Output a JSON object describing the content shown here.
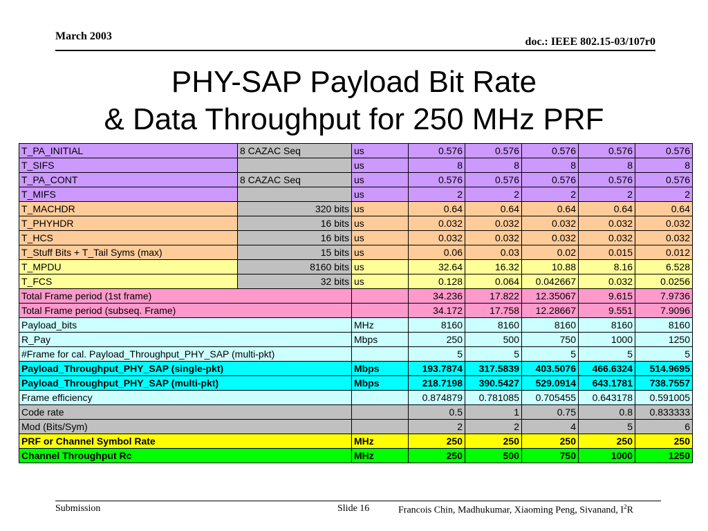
{
  "header": {
    "date": "March 2003",
    "doc": "doc.: IEEE 802.15-03/107r0"
  },
  "title": {
    "line1": "PHY-SAP Payload Bit Rate",
    "line2": "& Data Throughput for 250 MHz PRF"
  },
  "table": {
    "rows": [
      {
        "label": "T_PA_INITIAL",
        "spec": "8 CAZAC Seq",
        "unit": "us",
        "v": [
          "0.576",
          "0.576",
          "0.576",
          "0.576",
          "0.576"
        ]
      },
      {
        "label": "T_SIFS",
        "spec": "",
        "unit": "us",
        "v": [
          "8",
          "8",
          "8",
          "8",
          "8"
        ]
      },
      {
        "label": "T_PA_CONT",
        "spec": "8 CAZAC Seq",
        "unit": "us",
        "v": [
          "0.576",
          "0.576",
          "0.576",
          "0.576",
          "0.576"
        ]
      },
      {
        "label": "T_MIFS",
        "spec": "",
        "unit": "us",
        "v": [
          "2",
          "2",
          "2",
          "2",
          "2"
        ]
      },
      {
        "label": "T_MACHDR",
        "spec": "320 bits",
        "unit": "us",
        "v": [
          "0.64",
          "0.64",
          "0.64",
          "0.64",
          "0.64"
        ]
      },
      {
        "label": "T_PHYHDR",
        "spec": "16 bits",
        "unit": "us",
        "v": [
          "0.032",
          "0.032",
          "0.032",
          "0.032",
          "0.032"
        ]
      },
      {
        "label": "T_HCS",
        "spec": "16 bits",
        "unit": "us",
        "v": [
          "0.032",
          "0.032",
          "0.032",
          "0.032",
          "0.032"
        ]
      },
      {
        "label": "T_Stuff Bits + T_Tail Syms (max)",
        "spec": "15 bits",
        "unit": "us",
        "v": [
          "0.06",
          "0.03",
          "0.02",
          "0.015",
          "0.012"
        ]
      },
      {
        "label": "T_MPDU",
        "spec": "8160 bits",
        "unit": "us",
        "v": [
          "32.64",
          "16.32",
          "10.88",
          "8.16",
          "6.528"
        ]
      },
      {
        "label": "T_FCS",
        "spec": "32 bits",
        "unit": "us",
        "v": [
          "0.128",
          "0.064",
          "0.042667",
          "0.032",
          "0.0256"
        ]
      },
      {
        "label": "Total Frame period (1st frame)",
        "unit": "",
        "v": [
          "34.236",
          "17.822",
          "12.35067",
          "9.615",
          "7.9736"
        ]
      },
      {
        "label": "Total Frame period (subseq. Frame)",
        "unit": "",
        "v": [
          "34.172",
          "17.758",
          "12.28667",
          "9.551",
          "7.9096"
        ]
      },
      {
        "label": "Payload_bits",
        "unit": "MHz",
        "v": [
          "8160",
          "8160",
          "8160",
          "8160",
          "8160"
        ]
      },
      {
        "label": "R_Pay",
        "unit": "Mbps",
        "v": [
          "250",
          "500",
          "750",
          "1000",
          "1250"
        ]
      },
      {
        "label": "#Frame for cal. Payload_Throughput_PHY_SAP (multi-pkt)",
        "unit": "",
        "v": [
          "5",
          "5",
          "5",
          "5",
          "5"
        ]
      },
      {
        "label": "Payload_Throughput_PHY_SAP (single-pkt)",
        "unit": "Mbps",
        "v": [
          "193.7874",
          "317.5839",
          "403.5076",
          "466.6324",
          "514.9695"
        ]
      },
      {
        "label": "Payload_Throughput_PHY_SAP (multi-pkt)",
        "unit": "Mbps",
        "v": [
          "218.7198",
          "390.5427",
          "529.0914",
          "643.1781",
          "738.7557"
        ]
      },
      {
        "label": "Frame efficiency",
        "unit": "",
        "v": [
          "0.874879",
          "0.781085",
          "0.705455",
          "0.643178",
          "0.591005"
        ]
      },
      {
        "label": "Code rate",
        "unit": "",
        "v": [
          "0.5",
          "1",
          "0.75",
          "0.8",
          "0.833333"
        ]
      },
      {
        "label": "Mod (Bits/Sym)",
        "unit": "",
        "v": [
          "2",
          "2",
          "4",
          "5",
          "6"
        ]
      },
      {
        "label": "PRF or Channel Symbol Rate",
        "unit": "MHz",
        "v": [
          "250",
          "250",
          "250",
          "250",
          "250"
        ]
      },
      {
        "label": "Channel Throughput Rc",
        "unit": "MHz",
        "v": [
          "250",
          "500",
          "750",
          "1000",
          "1250"
        ]
      }
    ]
  },
  "footer": {
    "submission": "Submission",
    "slide": "Slide 16",
    "authors_pre": "Francois Chin, Madhukumar, Xiaoming Peng, Sivanand, I",
    "authors_sup": "2",
    "authors_post": "R"
  }
}
